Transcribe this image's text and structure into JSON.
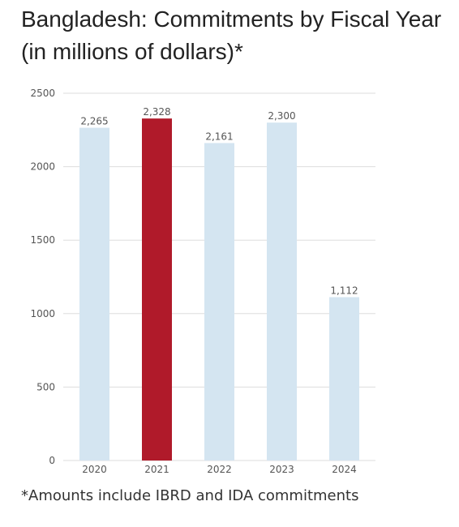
{
  "header": {
    "title": "Bangladesh: Commitments by Fiscal Year (in millions of dollars)*"
  },
  "footnote": "*Amounts include IBRD and IDA commitments",
  "colors": {
    "bar_default": "#d4e5f1",
    "bar_highlight": "#b01a2a",
    "grid": "#dddddd",
    "axis_text": "#555555",
    "title_text": "#222222"
  },
  "chart_data": {
    "type": "bar",
    "title": "",
    "xlabel": "",
    "ylabel": "",
    "categories": [
      "2020",
      "2021",
      "2022",
      "2023",
      "2024"
    ],
    "values": [
      2265,
      2328,
      2161,
      2300,
      1112
    ],
    "data_labels": [
      "2,265",
      "2,328",
      "2,161",
      "2,300",
      "1,112"
    ],
    "highlight_category": "2021",
    "ylim": [
      0,
      2500
    ],
    "yticks": [
      0,
      500,
      1000,
      1500,
      2000,
      2500
    ],
    "grid": true,
    "legend": "none"
  }
}
